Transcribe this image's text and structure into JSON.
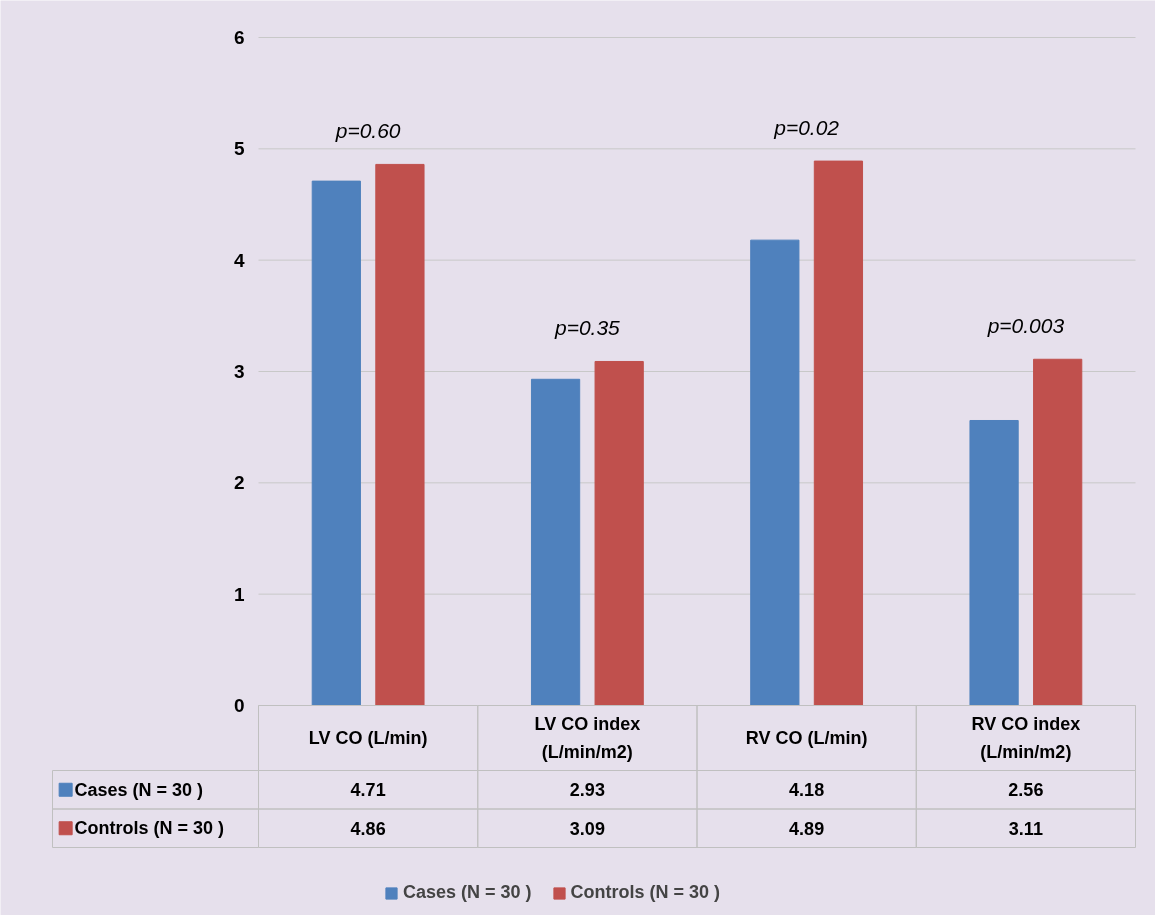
{
  "chart_data": {
    "type": "bar",
    "categories": [
      "LV CO (L/min)",
      "LV CO index\n(L/min/m2)",
      "RV CO (L/min)",
      "RV CO index\n(L/min/m2)"
    ],
    "series": [
      {
        "name": "Cases (N = 30 )",
        "color": "#4f81bd",
        "values": [
          4.71,
          2.93,
          4.18,
          2.56
        ]
      },
      {
        "name": "Controls (N = 30 )",
        "color": "#c0504d",
        "values": [
          4.86,
          3.09,
          4.89,
          3.11
        ]
      }
    ],
    "ylim": [
      0,
      6
    ],
    "yticks": [
      0,
      1,
      2,
      3,
      4,
      5,
      6
    ],
    "grid": "y",
    "legend": "bottom",
    "data_labels": true,
    "annotations": [
      "p=0.60",
      "p=0.35",
      "p=0.02",
      "p=0.003"
    ]
  }
}
